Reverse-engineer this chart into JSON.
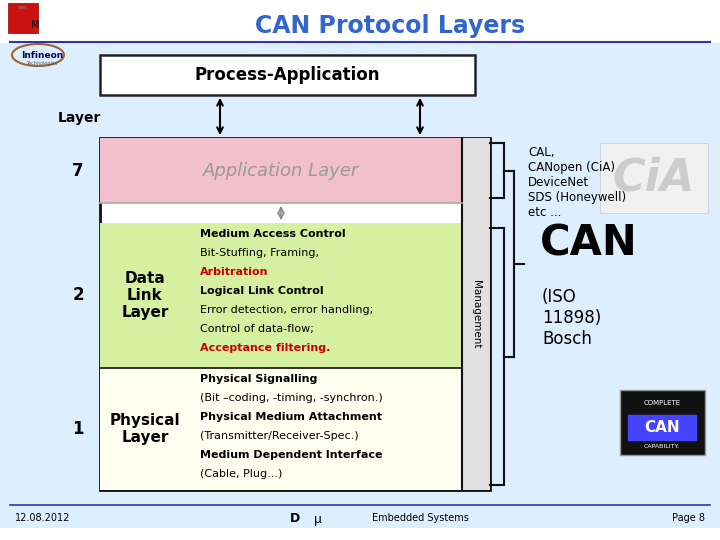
{
  "title": "CAN Protocol Layers",
  "title_color": "#3366cc",
  "bg_color": "#ddeeff",
  "process_app_text": "Process-Application",
  "layer_label": "Layer",
  "layer7_num": "7",
  "layer2_num": "2",
  "layer1_num": "1",
  "app_layer_text": "Application Layer",
  "app_layer_bg": "#f2c0cc",
  "app_layer_text_color": "#999999",
  "data_link_left_text": "Data\nLink\nLayer",
  "data_link_bg": "#d4f0a0",
  "data_link_content": [
    {
      "text": "Medium Access Control",
      "bold": true,
      "color": "#000000"
    },
    {
      "text": "Bit-Stuffing, Framing,",
      "bold": false,
      "color": "#000000"
    },
    {
      "text": "Arbitration",
      "bold": true,
      "color": "#cc0000"
    },
    {
      "text": "Logical Link Control",
      "bold": true,
      "color": "#000000"
    },
    {
      "text": "Error detection, error handling;",
      "bold": false,
      "color": "#000000"
    },
    {
      "text": "Control of data-flow;",
      "bold": false,
      "color": "#000000"
    },
    {
      "text": "Acceptance filtering.",
      "bold": true,
      "color": "#cc0000"
    }
  ],
  "physical_left_text": "Physical\nLayer",
  "physical_bg": "#fffff0",
  "physical_content": [
    {
      "text": "Physical Signalling",
      "bold": true,
      "color": "#000000"
    },
    {
      "text": "(Bit –coding, -timing, -synchron.)",
      "bold": false,
      "color": "#000000"
    },
    {
      "text": "Physical Medium Attachment",
      "bold": true,
      "color": "#000000"
    },
    {
      "text": "(Transmitter/Receiver-Spec.)",
      "bold": false,
      "color": "#000000"
    },
    {
      "text": "Medium Dependent Interface",
      "bold": true,
      "color": "#000000"
    },
    {
      "text": "(Cable, Plug...)",
      "bold": false,
      "color": "#000000"
    }
  ],
  "management_text": "Management",
  "can_text": "CAN",
  "can_sub_text": "(ISO\n11898)\nBosch",
  "cal_text": "CAL,\nCANopen (CiA)\nDeviceNet\nSDS (Honeywell)\netc ...",
  "footer_left": "12.08.2012",
  "footer_center_d": "D",
  "footer_center_mu": "μ",
  "footer_mid": "Embedded Systems",
  "footer_right": "Page 8",
  "line_color": "#3333aa",
  "footer_line_color": "#3333aa",
  "slide_bg": "#ffffff",
  "diag_bg": "#ddeeff"
}
